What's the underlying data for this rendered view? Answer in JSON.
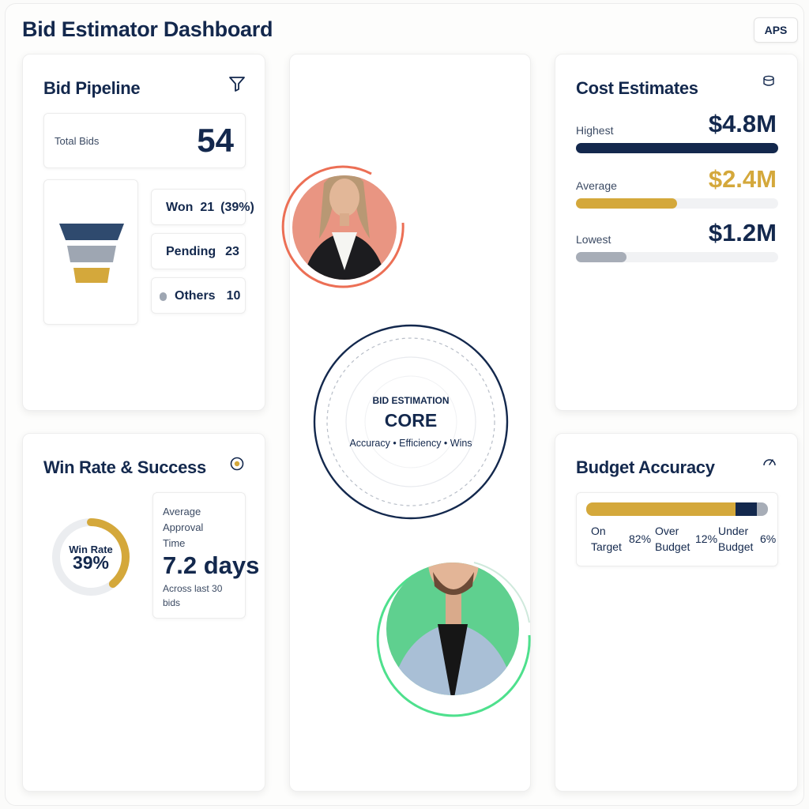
{
  "header": {
    "title": "Bid Estimator Dashboard",
    "user_button": "APS"
  },
  "pipeline": {
    "title": "Bid Pipeline",
    "filter_icon": "filter-icon",
    "total_label": "Total Bids",
    "total_value": "54",
    "statuses": [
      {
        "label": "Won",
        "value": "21",
        "percent": "(39%)",
        "color": "#2f4a6e"
      },
      {
        "label": "Pending",
        "value": "23",
        "color": "#9ea6b2"
      },
      {
        "label": "Others",
        "value": "10",
        "color": "#d4a83b"
      }
    ]
  },
  "win_rate": {
    "title": "Win Rate & Success",
    "target_icon": "target-icon",
    "gauge_label": "Win Rate",
    "gauge_value": "39%",
    "gauge_fraction": 0.39,
    "approval_label": "Average Approval Time",
    "approval_value": "7.2 days",
    "approval_note": "Across last 30 bids"
  },
  "core": {
    "kicker": "BID ESTIMATION",
    "title": "CORE",
    "tagline": "Accuracy • Efficiency • Wins"
  },
  "cost": {
    "title": "Cost Estimates",
    "database_icon": "database-icon",
    "rows": [
      {
        "label": "Highest",
        "value": "$4.8M",
        "fraction": 1.0,
        "color": "#13284d",
        "value_color": "#13284d"
      },
      {
        "label": "Average",
        "value": "$2.4M",
        "fraction": 0.5,
        "color": "#d4a83b",
        "value_color": "#d4a83b"
      },
      {
        "label": "Lowest",
        "value": "$1.2M",
        "fraction": 0.25,
        "color": "#a7adb7",
        "value_color": "#13284d"
      }
    ]
  },
  "budget": {
    "title": "Budget Accuracy",
    "gauge_icon": "speedometer-icon",
    "segments": [
      {
        "label": "On Target",
        "value": "82%",
        "fraction": 0.82,
        "color": "#d4a83b"
      },
      {
        "label": "Over Budget",
        "value": "12%",
        "fraction": 0.12,
        "color": "#13284d"
      },
      {
        "label": "Under Budget",
        "value": "6%",
        "fraction": 0.06,
        "color": "#a7adb7"
      }
    ]
  },
  "colors": {
    "navy": "#13284d",
    "gold": "#d4a83b",
    "grey": "#a7adb7",
    "coral": "#ec6f55",
    "green": "#4ee08d"
  }
}
